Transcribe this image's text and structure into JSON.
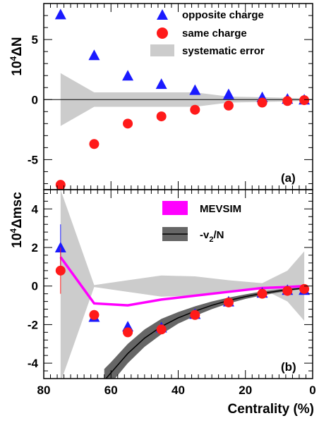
{
  "chart_data": [
    {
      "type": "scatter",
      "panel_label": "(a)",
      "ylabel": "10^4 ΔN",
      "ylabel_base": "10",
      "ylabel_exp": "4",
      "ylabel_rest": "ΔN",
      "xlim": [
        80,
        0
      ],
      "ylim": [
        -7.5,
        8.0
      ],
      "y_ticks": [
        -5,
        0,
        5
      ],
      "y_ticklabels": [
        "-5",
        "0",
        "5"
      ],
      "legend_position": "top-right",
      "series": [
        {
          "name": "opposite charge",
          "marker": "triangle",
          "color": "#1a1aff",
          "x": [
            75,
            65,
            55,
            45,
            35,
            25,
            15,
            7.5,
            2.5
          ],
          "y": [
            7.1,
            3.7,
            2.0,
            1.3,
            0.8,
            0.45,
            0.2,
            0.07,
            0.0
          ]
        },
        {
          "name": "same charge",
          "marker": "circle",
          "color": "#ff1a1a",
          "x": [
            75,
            65,
            55,
            45,
            35,
            25,
            15,
            7.5,
            2.5
          ],
          "y": [
            -7.1,
            -3.7,
            -2.0,
            -1.4,
            -0.85,
            -0.5,
            -0.25,
            -0.12,
            -0.05
          ]
        }
      ],
      "bands": [
        {
          "name": "systematic error",
          "color": "#cccccc",
          "x": [
            75,
            65,
            55,
            45,
            35,
            25,
            15,
            7.5,
            2.5
          ],
          "y_upper": [
            2.2,
            0.6,
            0.6,
            0.6,
            0.6,
            0.25,
            0.2,
            0.15,
            0.1
          ],
          "y_lower": [
            -2.2,
            -0.6,
            -0.6,
            -0.6,
            -0.6,
            -0.25,
            -0.2,
            -0.15,
            -0.1
          ]
        }
      ]
    },
    {
      "type": "scatter",
      "panel_label": "(b)",
      "ylabel": "10^4 Δmsc",
      "ylabel_base": "10",
      "ylabel_exp": "4",
      "ylabel_rest": "Δmsc",
      "xlabel": "Centrality (%)",
      "xlim": [
        80,
        0
      ],
      "ylim": [
        -4.8,
        5.0
      ],
      "x_ticks": [
        80,
        60,
        40,
        20,
        0
      ],
      "x_ticklabels": [
        "80",
        "60",
        "40",
        "20",
        "0"
      ],
      "y_ticks": [
        -4,
        -2,
        0,
        2,
        4
      ],
      "y_ticklabels": [
        "-4",
        "-2",
        "0",
        "2",
        "4"
      ],
      "legend_position": "top-right",
      "legend": [
        {
          "label": "MEVSIM",
          "color": "#ff00ff"
        },
        {
          "label_base": "-v",
          "label_sub": "2",
          "label_rest": "/N",
          "color": "#666666"
        }
      ],
      "series": [
        {
          "name": "opposite charge",
          "marker": "triangle",
          "color": "#1a1aff",
          "x": [
            75,
            65,
            55,
            45,
            35,
            25,
            15,
            7.5,
            2.5
          ],
          "y": [
            2.0,
            -1.6,
            -2.1,
            -2.15,
            -1.45,
            -0.8,
            -0.35,
            -0.2,
            -0.2
          ],
          "err": [
            1.2,
            0.25,
            0.1,
            0.08,
            0.06,
            0.05,
            0.04,
            0.04,
            0.04
          ]
        },
        {
          "name": "same charge",
          "marker": "circle",
          "color": "#ff1a1a",
          "x": [
            75,
            65,
            55,
            45,
            35,
            25,
            15,
            7.5,
            2.5
          ],
          "y": [
            0.8,
            -1.5,
            -2.4,
            -2.25,
            -1.5,
            -0.85,
            -0.4,
            -0.25,
            -0.15
          ],
          "err": [
            1.2,
            0.25,
            0.1,
            0.08,
            0.06,
            0.05,
            0.04,
            0.04,
            0.04
          ]
        }
      ],
      "mevsim_line": {
        "x": [
          75,
          65,
          55,
          45,
          35,
          25,
          15,
          7.5,
          2.5
        ],
        "y": [
          1.5,
          -0.9,
          -1.0,
          -0.7,
          -0.5,
          -0.3,
          -0.1,
          -0.05,
          0.0
        ]
      },
      "v2_curve": {
        "x": [
          62,
          60,
          55,
          50,
          45,
          40,
          35,
          30,
          25,
          20,
          15,
          10,
          5,
          2
        ],
        "y": [
          -4.9,
          -4.5,
          -3.5,
          -2.7,
          -2.1,
          -1.65,
          -1.3,
          -1.0,
          -0.75,
          -0.55,
          -0.38,
          -0.25,
          -0.15,
          -0.1
        ],
        "band_halfwidth": [
          0.6,
          0.55,
          0.5,
          0.45,
          0.4,
          0.3,
          0.25,
          0.2,
          0.15,
          0.12,
          0.1,
          0.08,
          0.05,
          0.04
        ]
      },
      "bands": [
        {
          "name": "systematic error",
          "color": "#cccccc",
          "x": [
            75,
            65,
            55,
            45,
            35,
            25,
            15,
            7.5,
            2.5
          ],
          "y_upper": [
            5.0,
            0.05,
            0.3,
            0.55,
            0.5,
            0.3,
            0.15,
            0.8,
            1.8
          ],
          "y_lower": [
            -5.0,
            -0.05,
            -0.3,
            -0.55,
            -0.5,
            -0.3,
            -0.15,
            -0.8,
            -1.8
          ]
        }
      ]
    }
  ],
  "legend_a": {
    "opposite": "opposite charge",
    "same": "same charge",
    "syst": "systematic error"
  },
  "legend_b": {
    "mevsim": "MEVSIM",
    "v2_base": "-v",
    "v2_sub": "2",
    "v2_rest": "/N"
  }
}
